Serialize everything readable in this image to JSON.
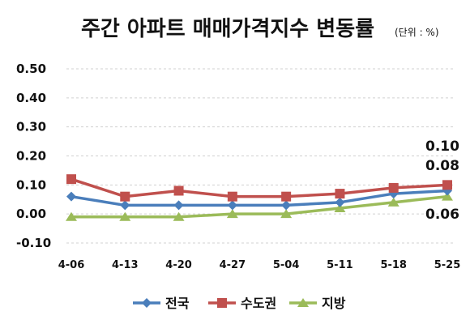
{
  "chart_data": {
    "type": "line",
    "title": "주간 아파트 매매가격지수 변동률",
    "unit_label": "(단위 : %)",
    "categories": [
      "4-06",
      "4-13",
      "4-20",
      "4-27",
      "5-04",
      "5-11",
      "5-18",
      "5-25"
    ],
    "ylim": [
      -0.1,
      0.5
    ],
    "yticks": [
      "0.50",
      "0.40",
      "0.30",
      "0.20",
      "0.10",
      "0.00",
      "-0.10"
    ],
    "grid": true,
    "legend_position": "bottom",
    "series": [
      {
        "name": "전국",
        "color": "#4a7ebb",
        "marker": "diamond",
        "values": [
          0.06,
          0.03,
          0.03,
          0.03,
          0.03,
          0.04,
          0.07,
          0.08
        ]
      },
      {
        "name": "수도권",
        "color": "#c0504d",
        "marker": "square",
        "values": [
          0.12,
          0.06,
          0.08,
          0.06,
          0.06,
          0.07,
          0.09,
          0.1
        ]
      },
      {
        "name": "지방",
        "color": "#9bbb59",
        "marker": "triangle",
        "values": [
          -0.01,
          -0.01,
          -0.01,
          0.0,
          0.0,
          0.02,
          0.04,
          0.06
        ]
      }
    ],
    "data_labels": [
      {
        "series": "수도권",
        "category": "5-25",
        "text": "0.10"
      },
      {
        "series": "전국",
        "category": "5-25",
        "text": "0.08"
      },
      {
        "series": "지방",
        "category": "5-25",
        "text": "0.06"
      }
    ]
  }
}
